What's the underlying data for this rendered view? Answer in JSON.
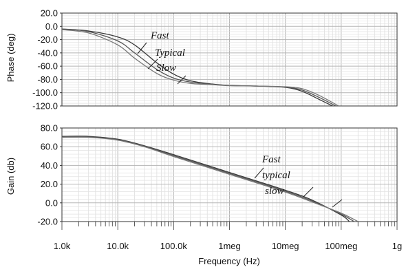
{
  "chart_data": [
    {
      "type": "line",
      "ylabel": "Phase (deg)",
      "x_scale": "log",
      "xlim": [
        1000,
        1000000000
      ],
      "ylim": [
        -120,
        20
      ],
      "yticks": [
        "20.0",
        "0.0",
        "-20.0",
        "-40.0",
        "-60.0",
        "-80.0",
        "-100.0",
        "-120.0"
      ],
      "grid": true,
      "series": [
        {
          "name": "Fast",
          "x": [
            1000,
            3000,
            10000,
            20000,
            50000,
            100000,
            200000,
            500000,
            1000000,
            3000000,
            10000000,
            20000000,
            40000000,
            70000000
          ],
          "values": [
            -4,
            -7,
            -16,
            -28,
            -55,
            -72,
            -82,
            -87,
            -89,
            -90,
            -92,
            -98,
            -110,
            -120
          ]
        },
        {
          "name": "Typical",
          "x": [
            1000,
            3000,
            10000,
            20000,
            50000,
            100000,
            200000,
            500000,
            1000000,
            3000000,
            10000000,
            20000000,
            40000000,
            80000000
          ],
          "values": [
            -4,
            -8,
            -22,
            -40,
            -65,
            -78,
            -84,
            -87.5,
            -89,
            -90,
            -91.5,
            -96,
            -107,
            -120
          ]
        },
        {
          "name": "Slow",
          "x": [
            1000,
            3000,
            10000,
            20000,
            50000,
            100000,
            200000,
            500000,
            1000000,
            3000000,
            10000000,
            20000000,
            40000000,
            90000000
          ],
          "values": [
            -5,
            -10,
            -28,
            -48,
            -71,
            -81,
            -86,
            -88,
            -89.5,
            -90,
            -91,
            -94,
            -104,
            -120
          ]
        }
      ],
      "annotations": [
        "Fast",
        "Typical",
        "Slow"
      ]
    },
    {
      "type": "line",
      "xlabel": "Frequency (Hz)",
      "ylabel": "Gain (db)",
      "x_scale": "log",
      "xlim": [
        1000,
        1000000000
      ],
      "ylim": [
        -20,
        80
      ],
      "yticks": [
        "80.0",
        "60.0",
        "40.0",
        "20.0",
        "0.0",
        "-20.0"
      ],
      "xticks": [
        "1.0k",
        "10.0k",
        "100.0k",
        "1meg",
        "10meg",
        "100meg",
        "1g"
      ],
      "grid": true,
      "series": [
        {
          "name": "Fast",
          "x": [
            1000,
            3000,
            10000,
            30000,
            100000,
            1000000,
            10000000,
            30000000,
            100000000,
            140000000
          ],
          "values": [
            71,
            71,
            68,
            61,
            51.5,
            32.5,
            13.5,
            3,
            -13,
            -20
          ]
        },
        {
          "name": "typical",
          "x": [
            1000,
            3000,
            10000,
            30000,
            100000,
            1000000,
            10000000,
            30000000,
            100000000,
            170000000
          ],
          "values": [
            71,
            70.5,
            67.5,
            60.5,
            50.5,
            31.5,
            12.5,
            2,
            -12,
            -20
          ]
        },
        {
          "name": "slow",
          "x": [
            1000,
            3000,
            10000,
            30000,
            100000,
            1000000,
            10000000,
            30000000,
            100000000,
            200000000
          ],
          "values": [
            70,
            70,
            67,
            60,
            49.5,
            30.5,
            11.5,
            1,
            -11,
            -20
          ]
        }
      ],
      "annotations": [
        "Fast",
        "typical",
        "slow"
      ]
    }
  ]
}
